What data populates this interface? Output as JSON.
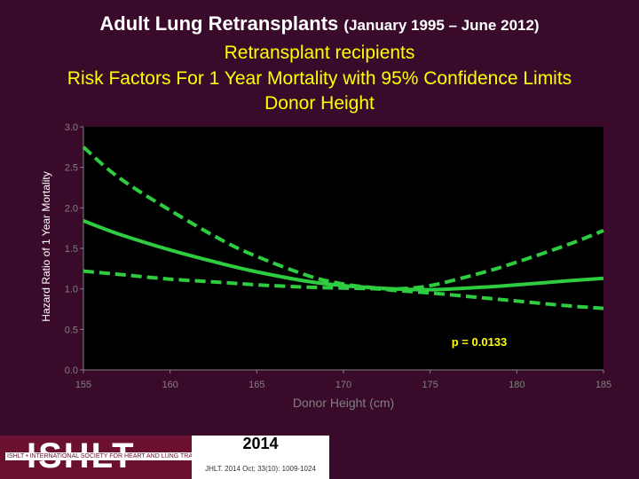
{
  "header": {
    "title_main": "Adult Lung Retransplants",
    "title_range": "(January 1995 – June 2012)",
    "subtitle1": "Retransplant recipients",
    "subtitle2": "Risk Factors For 1 Year Mortality with 95% Confidence Limits",
    "subtitle3": "Donor Height"
  },
  "chart_data": {
    "type": "line",
    "xlabel": "Donor Height (cm)",
    "ylabel": "Hazard Ratio of 1 Year Mortality",
    "xlim": [
      155,
      185
    ],
    "ylim": [
      0.0,
      3.0
    ],
    "x_ticks": [
      "155",
      "160",
      "165",
      "170",
      "175",
      "180",
      "185"
    ],
    "y_ticks": [
      "0.0",
      "0.5",
      "1.0",
      "1.5",
      "2.0",
      "2.5",
      "3.0"
    ],
    "grid": false,
    "annotation": "p = 0.0133",
    "series": [
      {
        "style": "solid",
        "x": [
          155,
          157,
          160,
          163,
          165,
          168,
          170,
          172,
          173,
          175,
          178,
          180,
          183,
          185
        ],
        "y": [
          1.84,
          1.68,
          1.48,
          1.31,
          1.21,
          1.09,
          1.04,
          1.01,
          1.0,
          0.99,
          1.02,
          1.05,
          1.1,
          1.13
        ]
      },
      {
        "style": "dashed",
        "x": [
          155,
          157,
          160,
          163,
          165,
          168,
          170,
          172,
          173,
          175,
          178,
          180,
          183,
          185
        ],
        "y": [
          2.75,
          2.38,
          1.97,
          1.6,
          1.4,
          1.16,
          1.06,
          1.01,
          1.0,
          1.04,
          1.2,
          1.33,
          1.55,
          1.72
        ]
      },
      {
        "style": "dashed",
        "x": [
          155,
          157,
          160,
          163,
          165,
          168,
          170,
          172,
          173,
          175,
          178,
          180,
          183,
          185
        ],
        "y": [
          1.22,
          1.18,
          1.12,
          1.08,
          1.05,
          1.02,
          1.01,
          1.0,
          0.98,
          0.95,
          0.89,
          0.85,
          0.79,
          0.76
        ]
      }
    ],
    "colors": {
      "line": "#2ecc40",
      "plot_bg": "#000000",
      "axis": "#808080",
      "tick_label": "#808080",
      "annotation": "#ffff00"
    }
  },
  "footer": {
    "logo": "ISHLT",
    "tagline": "ISHLT • INTERNATIONAL SOCIETY FOR HEART AND LUNG TRANSPLANTATION",
    "year": "2014",
    "citation": "JHLT. 2014 Oct; 33(10): 1009-1024"
  }
}
